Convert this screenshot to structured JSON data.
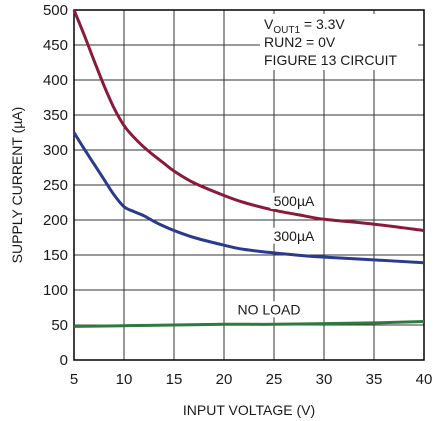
{
  "chart_data": {
    "type": "line",
    "title": "",
    "xlabel": "INPUT VOLTAGE (V)",
    "ylabel": "SUPPLY CURRENT (µA)",
    "xlim": [
      5,
      40
    ],
    "ylim": [
      0,
      500
    ],
    "xticks": [
      5,
      10,
      15,
      20,
      25,
      30,
      35,
      40
    ],
    "yticks": [
      0,
      50,
      100,
      150,
      200,
      250,
      300,
      350,
      400,
      450,
      500
    ],
    "grid": true,
    "annotations": [
      {
        "parts": [
          {
            "text": "V",
            "sub": false
          },
          {
            "text": "OUT1",
            "sub": true
          },
          {
            "text": " = 3.3V",
            "sub": false
          }
        ]
      },
      {
        "parts": [
          {
            "text": "RUN2 = 0V",
            "sub": false
          }
        ]
      },
      {
        "parts": [
          {
            "text": "FIGURE 13 CIRCUIT",
            "sub": false
          }
        ]
      }
    ],
    "series": [
      {
        "name": "500µA",
        "color": "#8b1a3a",
        "x": [
          5,
          6,
          7,
          8,
          9,
          10,
          11,
          12,
          13,
          14,
          15,
          17,
          20,
          22,
          25,
          28,
          30,
          35,
          40
        ],
        "y": [
          500,
          465,
          428,
          392,
          360,
          335,
          318,
          304,
          292,
          281,
          270,
          253,
          235,
          225,
          214,
          206,
          201,
          194,
          185
        ]
      },
      {
        "name": "300µA",
        "color": "#2a3a8c",
        "x": [
          5,
          6,
          7,
          8,
          9,
          10,
          11,
          12,
          13,
          14,
          15,
          17,
          20,
          22,
          25,
          28,
          30,
          35,
          40
        ],
        "y": [
          325,
          302,
          280,
          258,
          236,
          219,
          212,
          206,
          198,
          191,
          185,
          175,
          164,
          158,
          153,
          149,
          147,
          143,
          139
        ]
      },
      {
        "name": "NO LOAD",
        "color": "#2e7a3e",
        "x": [
          5,
          10,
          15,
          20,
          25,
          30,
          35,
          40
        ],
        "y": [
          48,
          49,
          50,
          51,
          51,
          52,
          53,
          55
        ]
      }
    ]
  }
}
